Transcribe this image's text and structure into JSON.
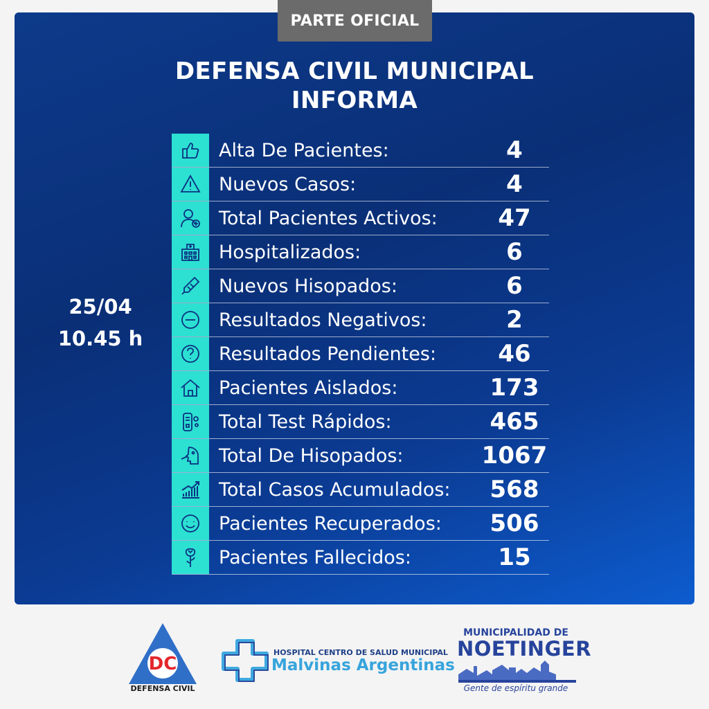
{
  "badge": "PARTE OFICIAL",
  "title_line1": "DEFENSA CIVIL MUNICIPAL",
  "title_line2": "INFORMA",
  "date": "25/04",
  "time": "10.45 h",
  "rows": [
    {
      "icon": "thumbs-up-icon",
      "label": "Alta De Pacientes:",
      "value": "4"
    },
    {
      "icon": "warning-icon",
      "label": "Nuevos Casos:",
      "value": "4"
    },
    {
      "icon": "patient-icon",
      "label": "Total Pacientes Activos:",
      "value": "47"
    },
    {
      "icon": "hospital-icon",
      "label": "Hospitalizados:",
      "value": "6"
    },
    {
      "icon": "swab-icon",
      "label": "Nuevos Hisopados:",
      "value": "6"
    },
    {
      "icon": "minus-circle-icon",
      "label": "Resultados Negativos:",
      "value": "2"
    },
    {
      "icon": "question-circle-icon",
      "label": "Resultados Pendientes:",
      "value": "46"
    },
    {
      "icon": "house-icon",
      "label": "Pacientes Aislados:",
      "value": "173"
    },
    {
      "icon": "rapid-test-icon",
      "label": "Total Test Rápidos:",
      "value": "465"
    },
    {
      "icon": "nasal-swab-icon",
      "label": "Total De Hisopados:",
      "value": "1067"
    },
    {
      "icon": "growth-chart-icon",
      "label": "Total Casos Acumulados:",
      "value": "568"
    },
    {
      "icon": "smiley-icon",
      "label": "Pacientes Recuperados:",
      "value": "506"
    },
    {
      "icon": "rose-icon",
      "label": "Pacientes Fallecidos:",
      "value": "15"
    }
  ],
  "logos": {
    "defensa_civil_mark": "DC",
    "defensa_civil_label": "DEFENSA CIVIL",
    "hospital_line1": "HOSPITAL CENTRO DE SALUD MUNICIPAL",
    "hospital_line2": "Malvinas Argentinas",
    "muni_line1": "MUNICIPALIDAD DE",
    "muni_line2": "NOETINGER",
    "muni_slogan": "Gente de espíritu grande"
  },
  "colors": {
    "panel": "#0b3180",
    "icon_cell": "#2ce0d2",
    "badge": "#6b6b6b",
    "dc_red": "#e3262b",
    "dc_blue": "#2f6fc8",
    "muni_blue": "#27449c"
  }
}
